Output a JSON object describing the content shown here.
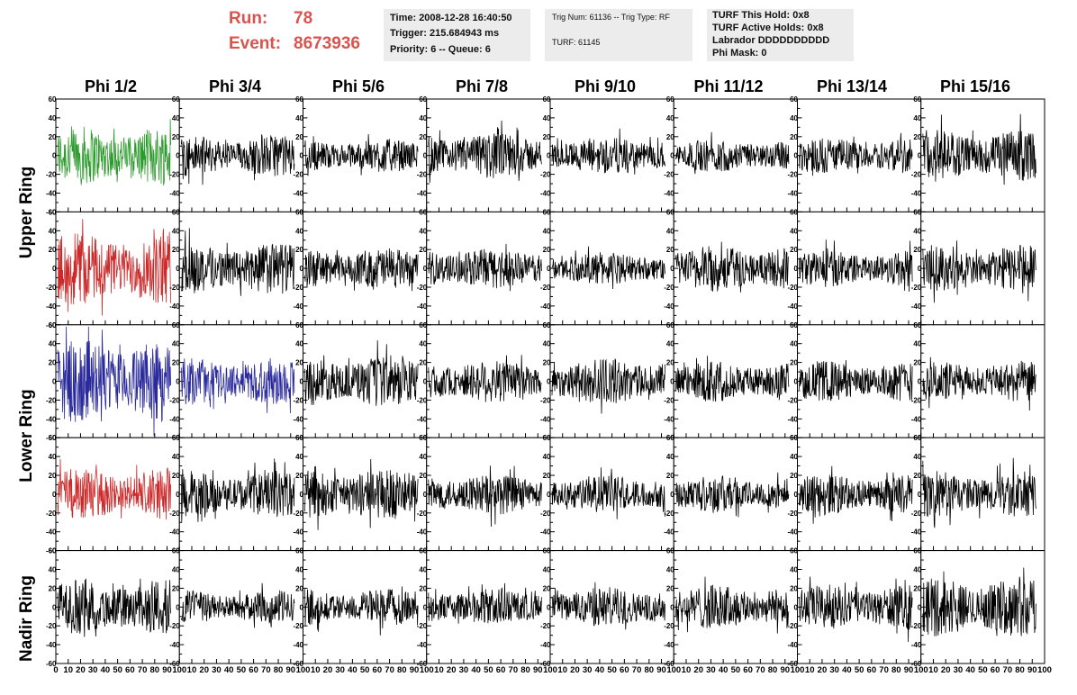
{
  "header": {
    "run_label": "Run:",
    "run_value": "78",
    "event_label": "Event:",
    "event_value": "8673936"
  },
  "info_boxes": [
    {
      "lines": [
        "Time: 2008-12-28 16:40:50",
        "Trigger: 215.684943 ms",
        "Priority: 6 -- Queue: 6"
      ]
    },
    {
      "lines": [
        "Trig Num: 61136 -- Trig Type: RF",
        "TURF: 61145"
      ]
    },
    {
      "lines": [
        "TURF This Hold: 0x8",
        "TURF Active Holds: 0x8",
        "Labrador DDDDDDDDDD",
        "Phi Mask: 0"
      ]
    }
  ],
  "columns": [
    "Phi 1/2",
    "Phi 3/4",
    "Phi 5/6",
    "Phi 7/8",
    "Phi 9/10",
    "Phi 11/12",
    "Phi 13/14",
    "Phi 15/16"
  ],
  "rows": [
    "Upper Ring",
    "Lower Ring",
    "Nadir Ring"
  ],
  "y_ticks": [
    "60",
    "40",
    "20",
    "0",
    "-20",
    "-40",
    "-60"
  ],
  "x_ticks": [
    "0",
    "10",
    "20",
    "30",
    "40",
    "50",
    "60",
    "70",
    "80",
    "90",
    "100"
  ],
  "colors": {
    "green": "#2e9b2e",
    "red": "#cc2a2a",
    "blue": "#2a2a9c",
    "black": "#000000",
    "run_text": "#d9534f"
  },
  "chart_data": {
    "type": "line",
    "panels_rows": 5,
    "panels_cols": 8,
    "xlim": [
      0,
      100
    ],
    "ylim": [
      -60,
      60
    ],
    "trace_colors": [
      [
        "green",
        "black",
        "black",
        "black",
        "black",
        "black",
        "black",
        "black"
      ],
      [
        "red",
        "black",
        "black",
        "black",
        "black",
        "black",
        "black",
        "black"
      ],
      [
        "blue",
        "blue",
        "black",
        "black",
        "black",
        "black",
        "black",
        "black"
      ],
      [
        "red",
        "black",
        "black",
        "black",
        "black",
        "black",
        "black",
        "black"
      ],
      [
        "black",
        "black",
        "black",
        "black",
        "black",
        "black",
        "black",
        "black"
      ]
    ],
    "amplitude": [
      [
        32,
        22,
        18,
        25,
        20,
        18,
        20,
        28
      ],
      [
        40,
        28,
        22,
        22,
        18,
        25,
        20,
        25
      ],
      [
        45,
        25,
        28,
        24,
        25,
        22,
        22,
        22
      ],
      [
        28,
        25,
        28,
        22,
        20,
        20,
        22,
        25
      ],
      [
        30,
        18,
        20,
        20,
        22,
        24,
        24,
        32
      ]
    ]
  }
}
